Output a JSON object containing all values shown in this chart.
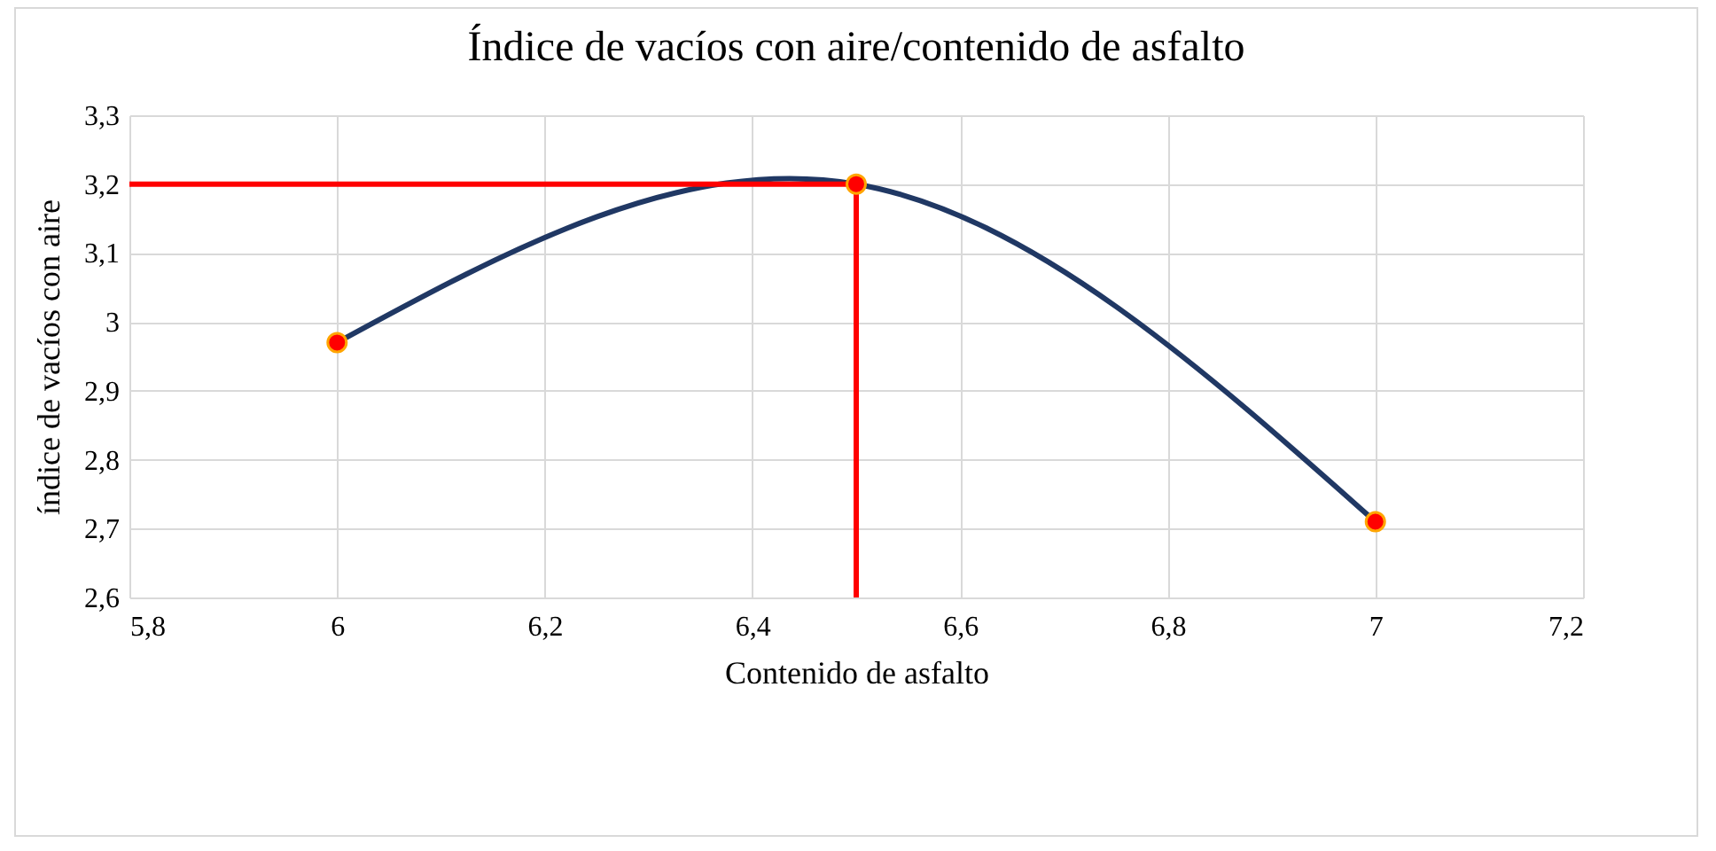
{
  "chart_data": {
    "type": "line",
    "title": "Índice de vacíos con aire/contenido de asfalto",
    "xlabel": "Contenido de asfalto",
    "ylabel": "índice de vacíos con aire",
    "x": [
      6,
      6.5,
      7
    ],
    "series": [
      {
        "color": "#203864",
        "values": [
          2.97,
          3.2,
          2.71
        ],
        "marker": "none"
      },
      {
        "type": "scatter",
        "color": "#ff0000",
        "values": [
          2.97,
          3.2,
          2.71
        ],
        "marker": "circle"
      }
    ],
    "xlim": [
      5.8,
      7.2
    ],
    "xticks": [
      {
        "value": 5.8,
        "label": "5,8"
      },
      6,
      {
        "value": 6.2,
        "label": "6,2"
      },
      {
        "value": 6.4,
        "label": "6,4"
      },
      {
        "value": 6.6,
        "label": "6,6"
      },
      {
        "value": 6.8,
        "label": "6,8"
      },
      7,
      {
        "value": 7.2,
        "label": "7,2"
      }
    ],
    "ylim": [
      2.6,
      3.3
    ],
    "yticks": [
      {
        "value": 2.6,
        "label": "2,6"
      },
      {
        "value": 2.7,
        "label": "2,7"
      },
      {
        "value": 2.8,
        "label": "2,8"
      },
      {
        "value": 2.9,
        "label": "2,9"
      },
      3,
      {
        "value": 3.1,
        "label": "3,1"
      },
      {
        "value": 3.2,
        "label": "3,2"
      },
      {
        "value": 3.3,
        "label": "3,3"
      }
    ],
    "grid": true,
    "ref_lines": [
      {
        "axis": "y",
        "value": 3.2,
        "color": "#ff0000"
      },
      {
        "axis": "x",
        "value": 6.5,
        "color": "#ff0000"
      }
    ]
  }
}
